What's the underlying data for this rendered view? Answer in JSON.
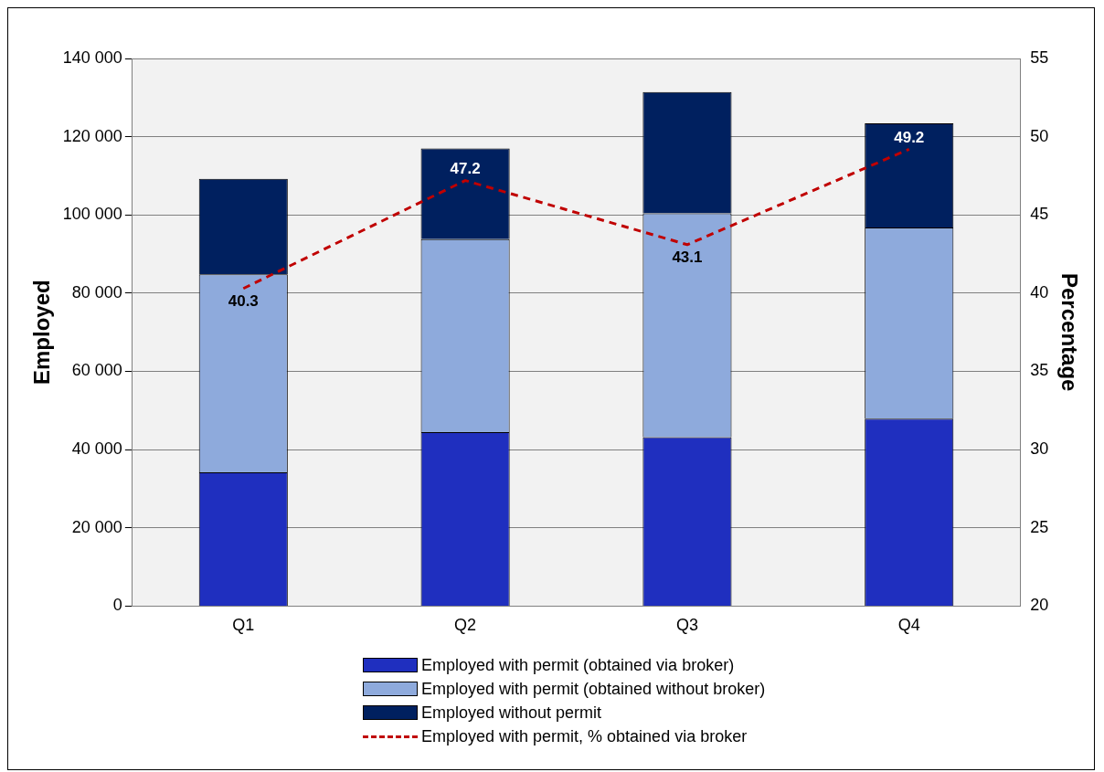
{
  "chart_data": {
    "type": "bar",
    "stacked": true,
    "categories": [
      "Q1",
      "Q2",
      "Q3",
      "Q4"
    ],
    "ylabel": "Employed",
    "y2label": "Percentage",
    "ylim": [
      0,
      140000
    ],
    "yticks": [
      {
        "value": 0,
        "label": "0"
      },
      {
        "value": 20000,
        "label": "20 000"
      },
      {
        "value": 40000,
        "label": "40 000"
      },
      {
        "value": 60000,
        "label": "60 000"
      },
      {
        "value": 80000,
        "label": "80 000"
      },
      {
        "value": 100000,
        "label": "100 000"
      },
      {
        "value": 120000,
        "label": "120 000"
      },
      {
        "value": 140000,
        "label": "140 000"
      }
    ],
    "y2lim": [
      20,
      55
    ],
    "y2ticks": [
      20,
      25,
      30,
      35,
      40,
      45,
      50,
      55
    ],
    "grid": "y",
    "legend": "bottom",
    "series": [
      {
        "name": "Employed with permit (obtained via broker)",
        "color": "#1f2fbf",
        "values": [
          34200,
          44500,
          43200,
          47900
        ]
      },
      {
        "name": "Employed with permit (obtained without broker)",
        "color": "#8eaadc",
        "values": [
          50600,
          49300,
          57200,
          48900
        ]
      },
      {
        "name": "Employed without permit",
        "color": "#00205f",
        "values": [
          24400,
          23200,
          31000,
          26600
        ]
      },
      {
        "name": "Employed with permit, % obtained via broker",
        "type": "line",
        "axis": "y2",
        "color": "#c00000",
        "line_style": "dashed",
        "marker": "none",
        "data_labels": true,
        "values": [
          40.3,
          47.2,
          43.1,
          49.2
        ]
      }
    ]
  }
}
